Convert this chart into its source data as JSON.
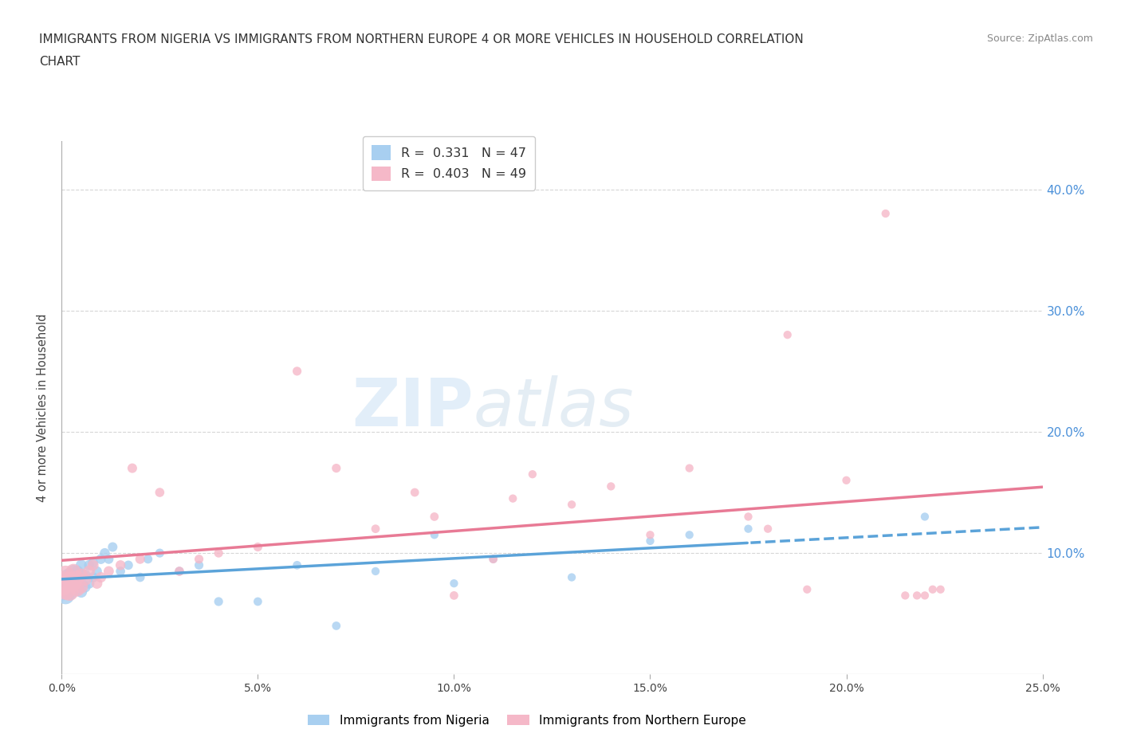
{
  "title_line1": "IMMIGRANTS FROM NIGERIA VS IMMIGRANTS FROM NORTHERN EUROPE 4 OR MORE VEHICLES IN HOUSEHOLD CORRELATION",
  "title_line2": "CHART",
  "source": "Source: ZipAtlas.com",
  "ylabel": "4 or more Vehicles in Household",
  "yticks_right": [
    "40.0%",
    "30.0%",
    "20.0%",
    "10.0%"
  ],
  "ytick_vals": [
    0.4,
    0.3,
    0.2,
    0.1
  ],
  "xrange": [
    0.0,
    0.25
  ],
  "yrange": [
    0.0,
    0.44
  ],
  "legend_nigeria": "Immigrants from Nigeria",
  "legend_northern": "Immigrants from Northern Europe",
  "R_nigeria": 0.331,
  "N_nigeria": 47,
  "R_northern": 0.403,
  "N_northern": 49,
  "color_nigeria": "#a8cff0",
  "color_northern": "#f5b8c8",
  "line_nigeria": "#5ba3d9",
  "line_northern": "#e87a95",
  "nigeria_x": [
    0.0,
    0.001,
    0.001,
    0.001,
    0.002,
    0.002,
    0.002,
    0.003,
    0.003,
    0.003,
    0.004,
    0.004,
    0.004,
    0.005,
    0.005,
    0.005,
    0.006,
    0.006,
    0.007,
    0.007,
    0.008,
    0.008,
    0.009,
    0.01,
    0.011,
    0.012,
    0.013,
    0.015,
    0.017,
    0.02,
    0.022,
    0.025,
    0.03,
    0.035,
    0.04,
    0.05,
    0.06,
    0.07,
    0.08,
    0.095,
    0.1,
    0.11,
    0.13,
    0.15,
    0.16,
    0.175,
    0.22
  ],
  "nigeria_y": [
    0.07,
    0.065,
    0.075,
    0.08,
    0.068,
    0.075,
    0.082,
    0.072,
    0.078,
    0.085,
    0.07,
    0.078,
    0.085,
    0.068,
    0.075,
    0.09,
    0.072,
    0.082,
    0.075,
    0.09,
    0.08,
    0.092,
    0.085,
    0.095,
    0.1,
    0.095,
    0.105,
    0.085,
    0.09,
    0.08,
    0.095,
    0.1,
    0.085,
    0.09,
    0.06,
    0.06,
    0.09,
    0.04,
    0.085,
    0.115,
    0.075,
    0.095,
    0.08,
    0.11,
    0.115,
    0.12,
    0.13
  ],
  "nigeria_size": [
    400,
    250,
    200,
    180,
    220,
    180,
    160,
    150,
    140,
    130,
    130,
    120,
    110,
    110,
    100,
    100,
    95,
    90,
    90,
    85,
    85,
    80,
    80,
    80,
    80,
    75,
    75,
    70,
    70,
    70,
    65,
    65,
    65,
    65,
    65,
    60,
    60,
    60,
    55,
    55,
    55,
    55,
    55,
    55,
    55,
    55,
    55
  ],
  "northern_x": [
    0.0,
    0.001,
    0.001,
    0.002,
    0.002,
    0.003,
    0.003,
    0.004,
    0.004,
    0.005,
    0.005,
    0.006,
    0.007,
    0.008,
    0.009,
    0.01,
    0.012,
    0.015,
    0.018,
    0.02,
    0.025,
    0.03,
    0.035,
    0.04,
    0.05,
    0.06,
    0.07,
    0.08,
    0.09,
    0.095,
    0.1,
    0.11,
    0.115,
    0.12,
    0.13,
    0.14,
    0.15,
    0.16,
    0.175,
    0.18,
    0.185,
    0.19,
    0.2,
    0.21,
    0.215,
    0.218,
    0.22,
    0.222,
    0.224
  ],
  "northern_y": [
    0.075,
    0.07,
    0.082,
    0.068,
    0.078,
    0.075,
    0.085,
    0.07,
    0.08,
    0.072,
    0.082,
    0.078,
    0.085,
    0.09,
    0.075,
    0.08,
    0.085,
    0.09,
    0.17,
    0.095,
    0.15,
    0.085,
    0.095,
    0.1,
    0.105,
    0.25,
    0.17,
    0.12,
    0.15,
    0.13,
    0.065,
    0.095,
    0.145,
    0.165,
    0.14,
    0.155,
    0.115,
    0.17,
    0.13,
    0.12,
    0.28,
    0.07,
    0.16,
    0.38,
    0.065,
    0.065,
    0.065,
    0.07,
    0.07
  ],
  "northern_size": [
    500,
    350,
    280,
    260,
    220,
    200,
    180,
    160,
    150,
    140,
    130,
    120,
    110,
    100,
    95,
    90,
    85,
    80,
    75,
    75,
    70,
    70,
    65,
    65,
    65,
    65,
    65,
    60,
    60,
    60,
    60,
    60,
    55,
    55,
    55,
    55,
    55,
    55,
    55,
    55,
    55,
    55,
    55,
    55,
    55,
    55,
    55,
    55,
    55
  ],
  "watermark_zip": "ZIP",
  "watermark_atlas": "atlas",
  "background_color": "#ffffff",
  "grid_color": "#cccccc"
}
